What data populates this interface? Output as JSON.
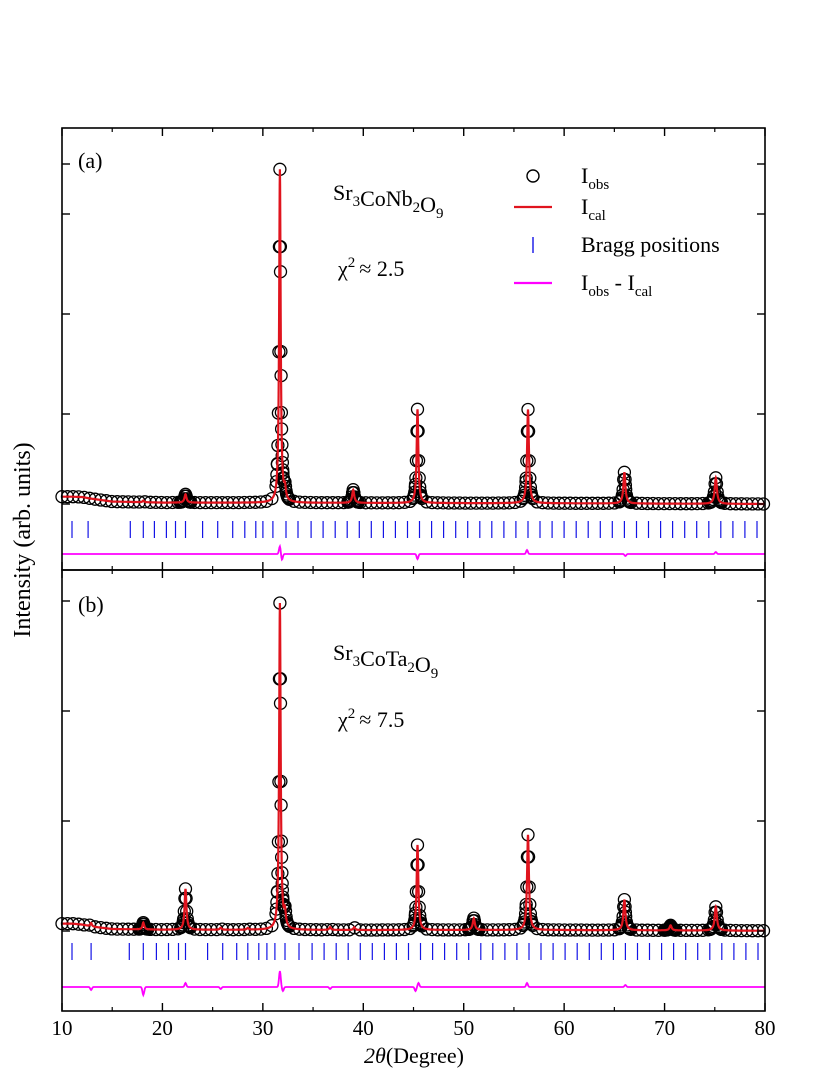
{
  "chart_data": {
    "type": "scatter",
    "xlabel_symbol": "2θ",
    "xlabel_unit": "(Degree)",
    "ylabel": "Intensity (arb. units)",
    "xlim": [
      10,
      80
    ],
    "x_ticks": [
      10,
      20,
      30,
      40,
      50,
      60,
      70,
      80
    ],
    "legend": {
      "placement": "top-right",
      "entries": [
        {
          "marker": "circle",
          "base": "I",
          "sub": "obs",
          "color": "#000000"
        },
        {
          "marker": "line",
          "base": "I",
          "sub": "cal",
          "color": "#e0141e"
        },
        {
          "marker": "tick",
          "label": "Bragg positions",
          "color": "#1414e6"
        },
        {
          "marker": "line",
          "base": "I",
          "sub": "obs",
          "mid": " - I",
          "sub2": "cal",
          "color": "#ff00ff"
        }
      ]
    },
    "panels": [
      {
        "label": "(a)",
        "formula": [
          [
            "Sr",
            "3"
          ],
          [
            "CoNb",
            "2"
          ],
          [
            "O",
            "9"
          ]
        ],
        "chi_text": "≈ 2.5",
        "background": [
          [
            10,
            5.6
          ],
          [
            11,
            5.6
          ],
          [
            12,
            5.5
          ],
          [
            13,
            5.0
          ],
          [
            15,
            4.2
          ],
          [
            20,
            3.9
          ],
          [
            40,
            3.8
          ],
          [
            60,
            3.7
          ],
          [
            80,
            3.5
          ]
        ],
        "peaks": [
          {
            "x": 18.1,
            "h": 0.5,
            "w": 0.08
          },
          {
            "x": 22.3,
            "h": 2.4,
            "w": 0.12
          },
          {
            "x": 31.7,
            "h": 96.0,
            "w": 0.09
          },
          {
            "x": 32.2,
            "h": 3.0,
            "w": 0.1
          },
          {
            "x": 39.0,
            "h": 3.8,
            "w": 0.12
          },
          {
            "x": 45.4,
            "h": 27.0,
            "w": 0.1
          },
          {
            "x": 56.4,
            "h": 27.0,
            "w": 0.11
          },
          {
            "x": 66.0,
            "h": 9.0,
            "w": 0.12
          },
          {
            "x": 75.1,
            "h": 7.5,
            "w": 0.13
          }
        ],
        "diff_spikes": [
          [
            31.7,
            4.0
          ],
          [
            31.9,
            -3.0
          ],
          [
            45.4,
            -2.5
          ],
          [
            56.3,
            2.0
          ],
          [
            66.1,
            -1.0
          ],
          [
            75.1,
            1.0
          ]
        ],
        "bragg_positions": [
          11.0,
          12.6,
          16.8,
          18.1,
          19.2,
          20.4,
          21.3,
          22.3,
          24.0,
          25.5,
          27.0,
          28.2,
          29.3,
          30.0,
          31.0,
          32.3,
          33.5,
          34.8,
          36.0,
          37.2,
          38.4,
          39.6,
          40.8,
          42.0,
          43.2,
          44.4,
          45.6,
          46.8,
          48.0,
          49.2,
          50.4,
          51.6,
          52.8,
          54.0,
          55.2,
          56.4,
          57.6,
          58.8,
          60.0,
          61.2,
          62.4,
          63.6,
          64.8,
          66.0,
          67.2,
          68.4,
          69.6,
          70.8,
          72.0,
          73.2,
          74.4,
          75.6,
          76.8,
          78.0,
          79.2
        ]
      },
      {
        "label": "(b)",
        "formula": [
          [
            "Sr",
            "3"
          ],
          [
            "CoTa",
            "2"
          ],
          [
            "O",
            "9"
          ]
        ],
        "chi_text": "≈ 7.5",
        "background": [
          [
            10,
            4.5
          ],
          [
            11,
            4.5
          ],
          [
            12,
            4.2
          ],
          [
            13,
            3.6
          ],
          [
            15,
            2.9
          ],
          [
            20,
            2.7
          ],
          [
            40,
            2.6
          ],
          [
            60,
            2.6
          ],
          [
            80,
            2.4
          ]
        ],
        "peaks": [
          {
            "x": 12.9,
            "h": 1.0,
            "w": 0.1
          },
          {
            "x": 18.1,
            "h": 2.0,
            "w": 0.1
          },
          {
            "x": 22.3,
            "h": 12.0,
            "w": 0.11
          },
          {
            "x": 25.8,
            "h": 0.6,
            "w": 0.1
          },
          {
            "x": 28.5,
            "h": 0.5,
            "w": 0.1
          },
          {
            "x": 31.7,
            "h": 96.0,
            "w": 0.09
          },
          {
            "x": 32.2,
            "h": 4.0,
            "w": 0.1
          },
          {
            "x": 36.7,
            "h": 0.8,
            "w": 0.1
          },
          {
            "x": 39.1,
            "h": 0.8,
            "w": 0.1
          },
          {
            "x": 45.4,
            "h": 25.0,
            "w": 0.1
          },
          {
            "x": 51.0,
            "h": 3.5,
            "w": 0.12
          },
          {
            "x": 56.4,
            "h": 28.0,
            "w": 0.11
          },
          {
            "x": 66.0,
            "h": 9.0,
            "w": 0.12
          },
          {
            "x": 70.6,
            "h": 1.5,
            "w": 0.12
          },
          {
            "x": 75.1,
            "h": 7.0,
            "w": 0.13
          }
        ],
        "diff_spikes": [
          [
            12.9,
            -1.5
          ],
          [
            18.1,
            -4.0
          ],
          [
            22.3,
            2.0
          ],
          [
            25.8,
            -1.0
          ],
          [
            31.7,
            8.0
          ],
          [
            32.0,
            -2.0
          ],
          [
            36.7,
            -1.0
          ],
          [
            45.2,
            -2.0
          ],
          [
            45.5,
            2.0
          ],
          [
            56.3,
            2.0
          ],
          [
            66.1,
            1.0
          ]
        ],
        "bragg_positions": [
          11.0,
          12.9,
          16.7,
          18.1,
          19.4,
          20.6,
          21.6,
          22.3,
          24.5,
          26.0,
          27.4,
          28.5,
          29.6,
          30.4,
          31.2,
          32.2,
          33.6,
          34.9,
          36.1,
          37.3,
          38.5,
          39.7,
          40.9,
          42.1,
          43.3,
          44.5,
          45.7,
          46.9,
          48.1,
          49.3,
          50.5,
          51.7,
          52.9,
          54.1,
          55.3,
          56.5,
          57.7,
          58.9,
          60.1,
          61.3,
          62.5,
          63.7,
          64.9,
          66.1,
          67.3,
          68.5,
          69.7,
          70.9,
          72.1,
          73.3,
          74.5,
          75.7,
          76.9,
          78.1,
          79.3
        ]
      }
    ]
  }
}
